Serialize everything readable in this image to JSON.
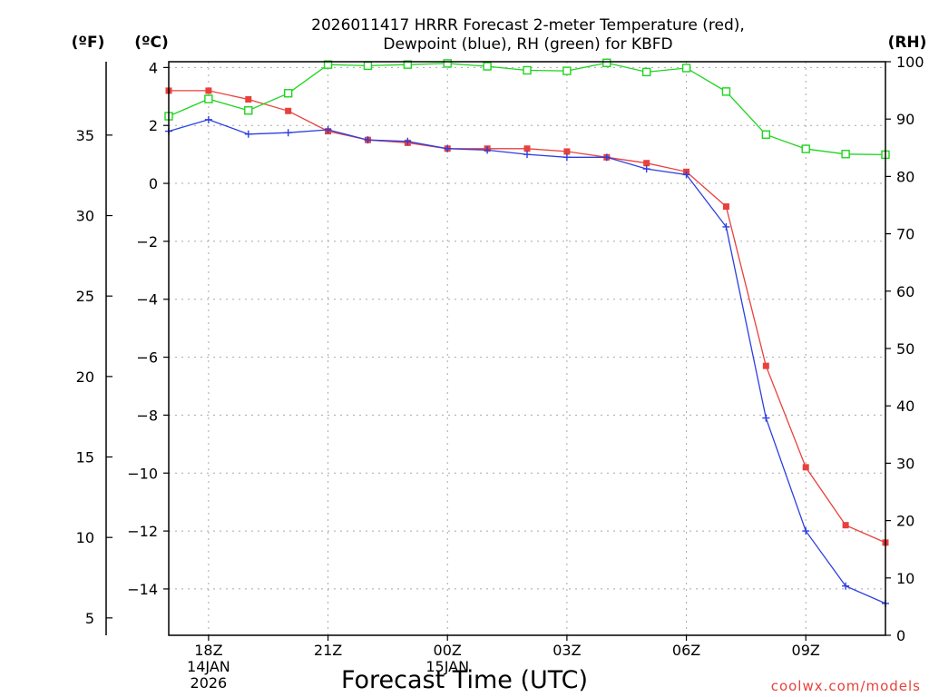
{
  "chart_data": {
    "type": "line",
    "title_line1": "2026011417 HRRR Forecast 2-meter Temperature (red),",
    "title_line2": "Dewpoint (blue), RH (green) for KBFD",
    "xlabel": "Forecast Time (UTC)",
    "credit": "coolwx.com/models",
    "units": {
      "fahrenheit": "(ºF)",
      "celsius": "(ºC)",
      "rh": "(RH)"
    },
    "x_hours": [
      17,
      18,
      19,
      20,
      21,
      22,
      23,
      24,
      25,
      26,
      27,
      28,
      29,
      30,
      31,
      32,
      33,
      34,
      35
    ],
    "xlim": [
      17,
      35
    ],
    "x_ticks": [
      {
        "hour": 18,
        "lines": [
          "18Z",
          "14JAN",
          "2026"
        ]
      },
      {
        "hour": 21,
        "lines": [
          "21Z"
        ]
      },
      {
        "hour": 24,
        "lines": [
          "00Z",
          "15JAN"
        ]
      },
      {
        "hour": 27,
        "lines": [
          "03Z"
        ]
      },
      {
        "hour": 30,
        "lines": [
          "06Z"
        ]
      },
      {
        "hour": 33,
        "lines": [
          "09Z"
        ]
      }
    ],
    "ylim_c": [
      -15.6,
      4.2
    ],
    "ticks_c": [
      4,
      2,
      0,
      -2,
      -4,
      -6,
      -8,
      -10,
      -12,
      -14
    ],
    "tick_labels_c": [
      "4",
      "2",
      "0",
      "−2",
      "−4",
      "−6",
      "−8",
      "−10",
      "−12",
      "−14"
    ],
    "ticks_f": [
      35,
      30,
      25,
      20,
      15,
      10,
      5
    ],
    "ticks_rh": [
      100,
      90,
      80,
      70,
      60,
      50,
      40,
      30,
      20,
      10,
      0
    ],
    "ylim_rh": [
      0,
      100
    ],
    "series": [
      {
        "name": "Temperature",
        "color": "#e8413c",
        "axis": "celsius",
        "marker": "filled-square",
        "values": [
          3.2,
          3.2,
          2.9,
          2.5,
          1.8,
          1.5,
          1.4,
          1.2,
          1.2,
          1.2,
          1.1,
          0.9,
          0.7,
          0.4,
          -0.8,
          -6.3,
          -9.8,
          -11.8,
          -12.4
        ]
      },
      {
        "name": "Dewpoint",
        "color": "#2c3fe0",
        "axis": "celsius",
        "marker": "plus",
        "values": [
          1.8,
          2.2,
          1.7,
          1.75,
          1.85,
          1.5,
          1.45,
          1.2,
          1.15,
          1.0,
          0.9,
          0.9,
          0.5,
          0.3,
          -1.5,
          -8.1,
          -12.0,
          -13.9,
          -14.5
        ]
      },
      {
        "name": "RH",
        "color": "#1ed41e",
        "axis": "rh",
        "marker": "open-square",
        "values": [
          90.5,
          93.5,
          91.5,
          94.5,
          99.5,
          99.3,
          99.5,
          99.7,
          99.2,
          98.5,
          98.4,
          99.8,
          98.2,
          98.9,
          94.8,
          87.3,
          84.8,
          83.9,
          83.8
        ]
      }
    ]
  }
}
